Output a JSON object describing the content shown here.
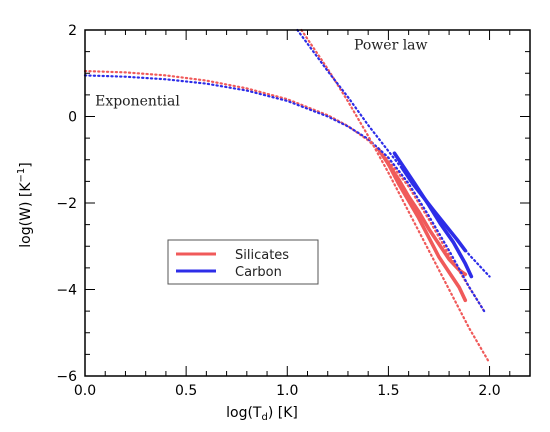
{
  "chart_data": {
    "type": "line",
    "xlabel": "log(T_d) [K]",
    "ylabel": "log(W) [K^-1]",
    "xlim": [
      0.0,
      2.2
    ],
    "ylim": [
      -6,
      2
    ],
    "x_ticks": [
      "0.0",
      "0.5",
      "1.0",
      "1.5",
      "2.0"
    ],
    "x_tick_values": [
      0.0,
      0.5,
      1.0,
      1.5,
      2.0
    ],
    "y_ticks": [
      "2",
      "0",
      "−2",
      "−4",
      "−6"
    ],
    "y_tick_values": [
      2,
      0,
      -2,
      -4,
      -6
    ],
    "grid": false,
    "legend_position": "center-left",
    "annotations": [
      {
        "text": "Power law",
        "x": 1.33,
        "y": 1.55
      },
      {
        "text": "Exponential",
        "x": 0.05,
        "y": 0.25
      }
    ],
    "series": [
      {
        "name": "Silicates",
        "color": "#f05a5a",
        "style": "solid",
        "points": [
          [
            1.45,
            -0.75
          ],
          [
            1.5,
            -1.1
          ],
          [
            1.55,
            -1.55
          ],
          [
            1.6,
            -1.95
          ],
          [
            1.65,
            -2.35
          ],
          [
            1.7,
            -2.8
          ],
          [
            1.75,
            -3.25
          ],
          [
            1.8,
            -3.6
          ],
          [
            1.85,
            -3.95
          ],
          [
            1.88,
            -4.25
          ]
        ]
      },
      {
        "name": "Carbon",
        "color": "#2d2de8",
        "style": "solid",
        "points": [
          [
            1.53,
            -0.85
          ],
          [
            1.58,
            -1.2
          ],
          [
            1.63,
            -1.55
          ],
          [
            1.7,
            -2.05
          ],
          [
            1.76,
            -2.5
          ],
          [
            1.82,
            -2.9
          ],
          [
            1.88,
            -3.4
          ],
          [
            1.91,
            -3.7
          ]
        ]
      },
      {
        "color": "#f05a5a",
        "style": "solid",
        "points": [
          [
            1.5,
            -1.1
          ],
          [
            1.55,
            -1.45
          ],
          [
            1.6,
            -1.85
          ],
          [
            1.65,
            -2.2
          ],
          [
            1.7,
            -2.6
          ],
          [
            1.75,
            -2.95
          ],
          [
            1.8,
            -3.3
          ],
          [
            1.85,
            -3.55
          ],
          [
            1.88,
            -3.65
          ]
        ]
      },
      {
        "color": "#2d2de8",
        "style": "solid",
        "points": [
          [
            1.57,
            -1.2
          ],
          [
            1.62,
            -1.55
          ],
          [
            1.67,
            -1.85
          ],
          [
            1.72,
            -2.15
          ],
          [
            1.78,
            -2.5
          ],
          [
            1.84,
            -2.85
          ],
          [
            1.88,
            -3.1
          ]
        ]
      },
      {
        "color": "#f05a5a",
        "style": "dotted",
        "points": [
          [
            0.0,
            1.05
          ],
          [
            0.2,
            1.02
          ],
          [
            0.4,
            0.95
          ],
          [
            0.6,
            0.83
          ],
          [
            0.8,
            0.65
          ],
          [
            1.0,
            0.4
          ],
          [
            1.2,
            0.03
          ],
          [
            1.3,
            -0.22
          ],
          [
            1.4,
            -0.55
          ],
          [
            1.5,
            -1.02
          ],
          [
            1.6,
            -1.62
          ],
          [
            1.7,
            -2.38
          ],
          [
            1.8,
            -3.2
          ],
          [
            1.9,
            -3.95
          ],
          [
            1.98,
            -4.55
          ]
        ]
      },
      {
        "color": "#2d2de8",
        "style": "dotted",
        "points": [
          [
            0.0,
            0.95
          ],
          [
            0.2,
            0.92
          ],
          [
            0.4,
            0.86
          ],
          [
            0.6,
            0.76
          ],
          [
            0.8,
            0.6
          ],
          [
            1.0,
            0.36
          ],
          [
            1.2,
            0.0
          ],
          [
            1.3,
            -0.23
          ],
          [
            1.4,
            -0.52
          ],
          [
            1.5,
            -0.95
          ],
          [
            1.6,
            -1.55
          ],
          [
            1.7,
            -2.3
          ],
          [
            1.8,
            -3.1
          ],
          [
            1.9,
            -3.95
          ],
          [
            1.98,
            -4.55
          ]
        ]
      },
      {
        "color": "#f05a5a",
        "style": "dotted",
        "points": [
          [
            1.07,
            2.0
          ],
          [
            1.2,
            1.1
          ],
          [
            1.3,
            0.35
          ],
          [
            1.4,
            -0.45
          ],
          [
            1.5,
            -1.3
          ],
          [
            1.6,
            -2.2
          ],
          [
            1.7,
            -3.1
          ],
          [
            1.8,
            -4.0
          ],
          [
            1.9,
            -4.9
          ],
          [
            2.0,
            -5.7
          ]
        ]
      },
      {
        "color": "#2d2de8",
        "style": "dotted",
        "points": [
          [
            1.05,
            2.0
          ],
          [
            1.2,
            1.05
          ],
          [
            1.3,
            0.45
          ],
          [
            1.4,
            -0.2
          ],
          [
            1.5,
            -0.8
          ],
          [
            1.6,
            -1.4
          ],
          [
            1.7,
            -2.05
          ],
          [
            1.8,
            -2.6
          ],
          [
            1.9,
            -3.2
          ],
          [
            2.0,
            -3.7
          ]
        ]
      }
    ]
  }
}
